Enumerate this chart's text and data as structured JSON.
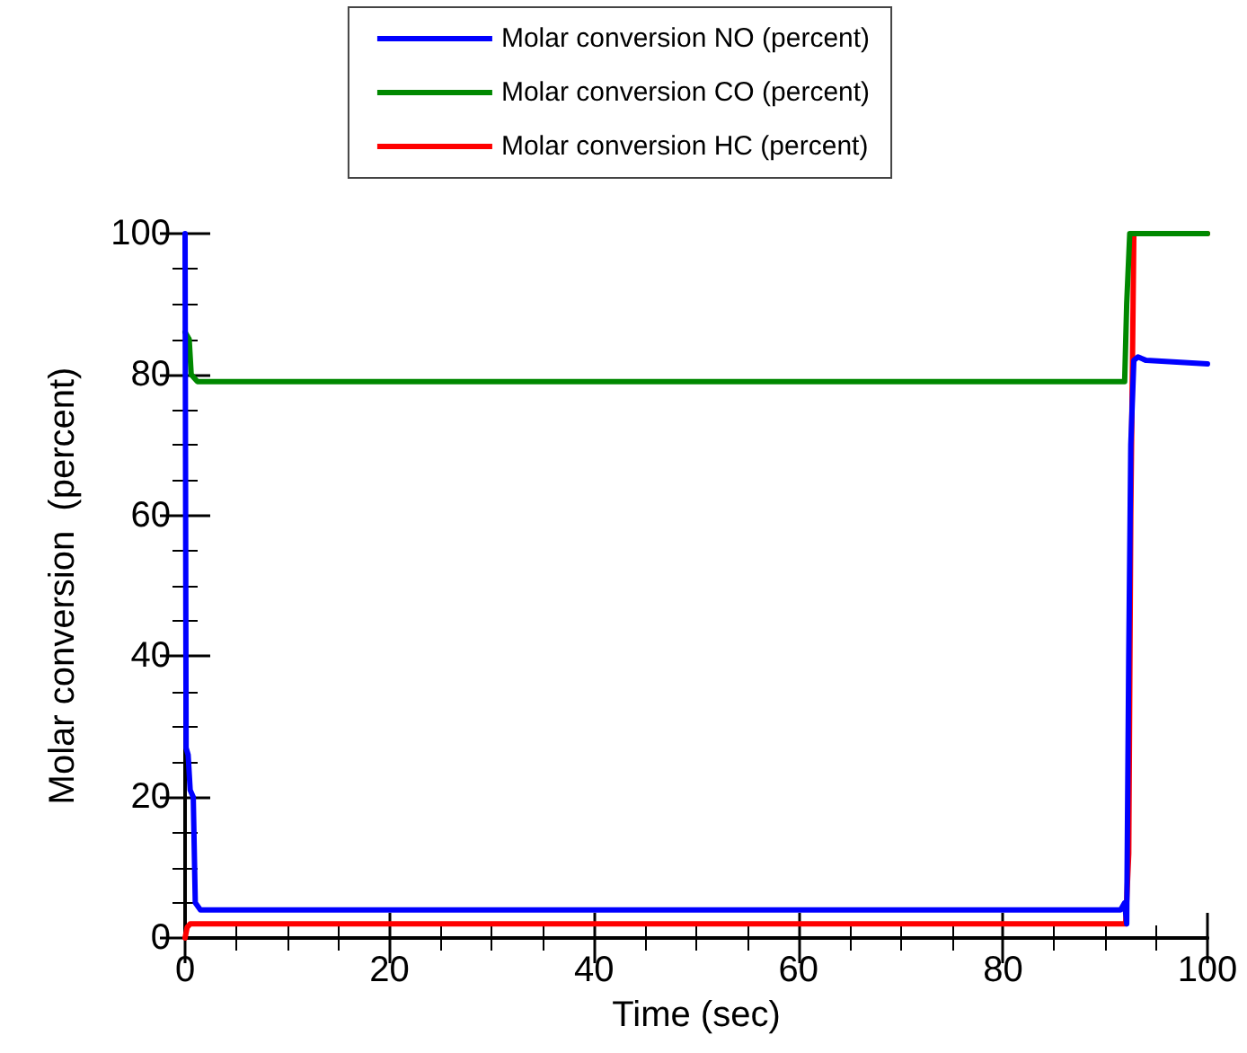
{
  "chart_data": {
    "type": "line",
    "xlabel": "Time (sec)",
    "ylabel": "Molar conversion  (percent)",
    "xlim": [
      0,
      100
    ],
    "xticks": [
      0,
      20,
      40,
      60,
      80,
      100
    ],
    "ylim": [
      0,
      100
    ],
    "yticks": [
      0,
      20,
      40,
      60,
      80,
      100
    ],
    "grid": false,
    "legend": "top",
    "marker": "none",
    "line_style": "solid",
    "series": [
      {
        "name": "Molar conversion NO (percent)",
        "color": "#0000ff",
        "x": [
          0,
          0.1,
          0.3,
          0.5,
          0.8,
          1.0,
          1.5,
          91.5,
          91.9,
          92.1,
          92.3,
          92.5,
          92.8,
          93.2,
          94,
          100
        ],
        "values": [
          100,
          27,
          26,
          21,
          20,
          5,
          4,
          4,
          5,
          2,
          40,
          70,
          82,
          82.5,
          82,
          81.5
        ]
      },
      {
        "name": "Molar conversion CO (percent)",
        "color": "#008800",
        "x": [
          0,
          0.1,
          0.4,
          0.6,
          0.9,
          1.2,
          91.5,
          91.9,
          92.1,
          92.4,
          100
        ],
        "values": [
          86,
          86,
          85,
          80,
          79.5,
          79,
          79,
          79,
          90,
          100,
          100
        ]
      },
      {
        "name": "Molar conversion HC (percent)",
        "color": "#ff0000",
        "x": [
          0,
          0.2,
          0.5,
          92,
          92.3,
          92.5,
          92.8,
          100
        ],
        "values": [
          0,
          1.5,
          2,
          2,
          12,
          60,
          100,
          100
        ]
      }
    ]
  }
}
